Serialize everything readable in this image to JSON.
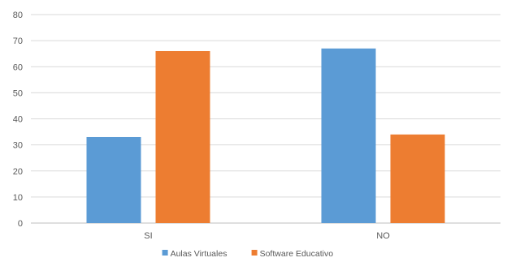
{
  "chart_data": {
    "type": "bar",
    "title": "",
    "xlabel": "",
    "ylabel": "",
    "categories": [
      "SI",
      "NO"
    ],
    "series": [
      {
        "name": "Aulas Virtuales",
        "values": [
          33,
          67
        ],
        "color": "#5B9BD5"
      },
      {
        "name": "Software Educativo",
        "values": [
          66,
          34
        ],
        "color": "#ED7D31"
      }
    ],
    "ylim": [
      0,
      80
    ],
    "yticks": [
      0,
      10,
      20,
      30,
      40,
      50,
      60,
      70,
      80
    ],
    "grid": true,
    "legend_position": "bottom"
  }
}
